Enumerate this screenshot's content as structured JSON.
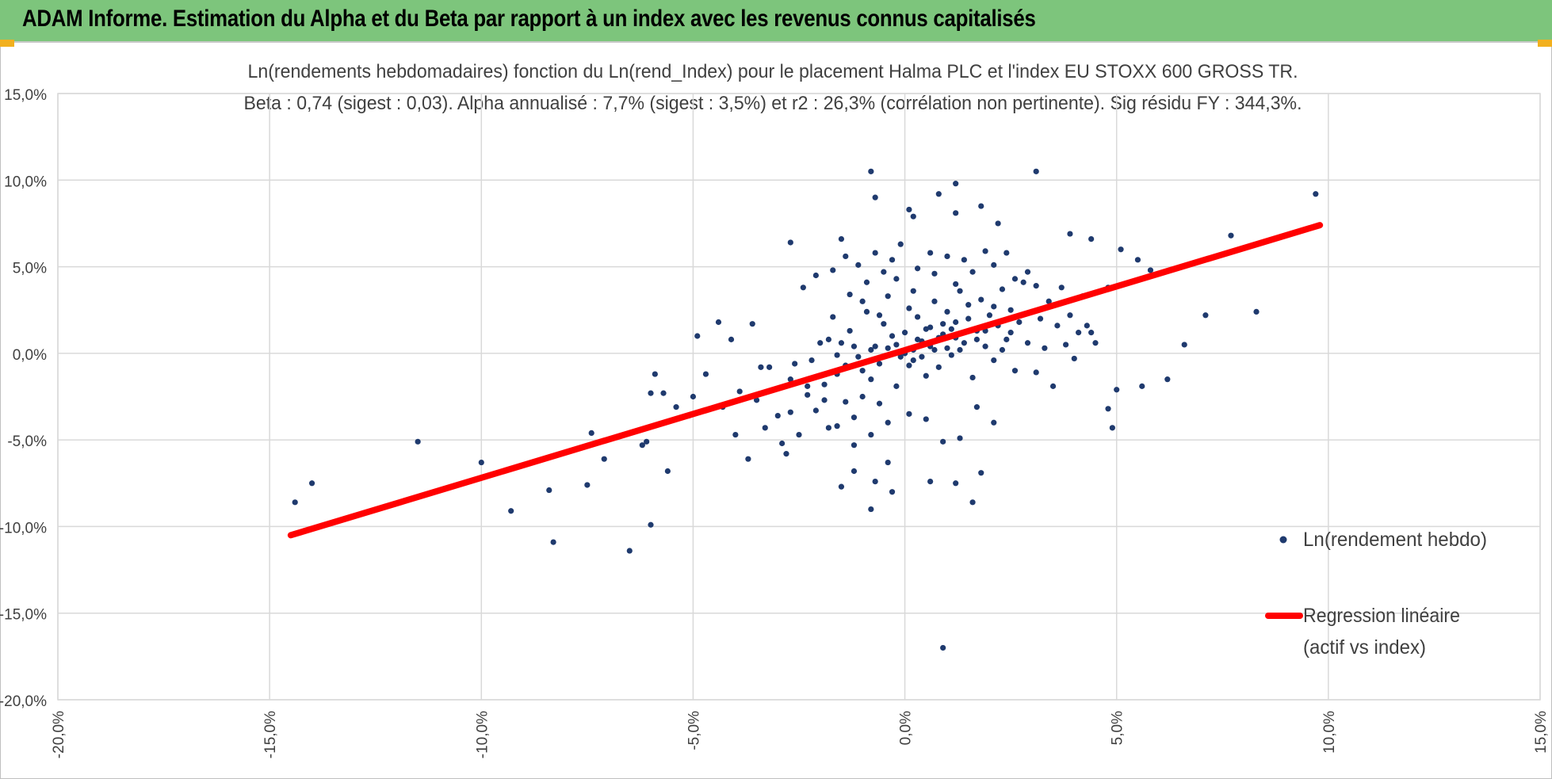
{
  "header": {
    "title": "ADAM Informe. Estimation du Alpha et du Beta par rapport à un index avec les revenus connus capitalisés"
  },
  "colors": {
    "header_bg": "#7dc57c",
    "accent_corner": "#f2b01e",
    "points": "#1f3a6e",
    "regression": "#ff0000",
    "grid": "#d9d9d9"
  },
  "chart_data": {
    "type": "scatter",
    "title": "Ln(rendements hebdomadaires) fonction du Ln(rend_Index) pour le placement Halma PLC et l'index EU STOXX 600 GROSS TR.",
    "subtitle": "Beta : 0,74 (sigest : 0,03). Alpha annualisé : 7,7% (sigest : 3,5%) et r2 : 26,3% (corrélation non pertinente). Sig résidu FY : 344,3%.",
    "xlabel": "",
    "ylabel": "",
    "xlim": [
      -0.2,
      0.15
    ],
    "ylim": [
      -0.2,
      0.15
    ],
    "x_ticks": [
      "-20,0%",
      "-15,0%",
      "-10,0%",
      "-5,0%",
      "0,0%",
      "5,0%",
      "10,0%",
      "15,0%"
    ],
    "y_ticks": [
      "15,0%",
      "10,0%",
      "5,0%",
      "0,0%",
      "-5,0%",
      "-10,0%",
      "-15,0%",
      "-20,0%"
    ],
    "grid": true,
    "legend_position": "right",
    "series": [
      {
        "name": "Ln(rendement hebdo)",
        "type": "scatter",
        "color": "#1f3a6e",
        "points": [
          [
            -0.144,
            -0.086
          ],
          [
            -0.14,
            -0.075
          ],
          [
            -0.115,
            -0.051
          ],
          [
            -0.1,
            -0.063
          ],
          [
            -0.093,
            -0.091
          ],
          [
            -0.084,
            -0.079
          ],
          [
            -0.083,
            -0.109
          ],
          [
            -0.075,
            -0.076
          ],
          [
            -0.074,
            -0.046
          ],
          [
            -0.071,
            -0.061
          ],
          [
            -0.065,
            -0.114
          ],
          [
            -0.062,
            -0.053
          ],
          [
            -0.061,
            -0.051
          ],
          [
            -0.06,
            -0.023
          ],
          [
            -0.06,
            -0.099
          ],
          [
            -0.059,
            -0.012
          ],
          [
            -0.057,
            -0.023
          ],
          [
            -0.056,
            -0.068
          ],
          [
            -0.054,
            -0.031
          ],
          [
            -0.051,
            -0.036
          ],
          [
            -0.05,
            -0.025
          ],
          [
            -0.049,
            0.01
          ],
          [
            -0.047,
            -0.012
          ],
          [
            -0.044,
            0.018
          ],
          [
            -0.043,
            -0.031
          ],
          [
            -0.041,
            0.008
          ],
          [
            -0.04,
            -0.047
          ],
          [
            -0.039,
            -0.022
          ],
          [
            -0.037,
            -0.061
          ],
          [
            -0.036,
            0.017
          ],
          [
            -0.035,
            -0.027
          ],
          [
            -0.034,
            -0.008
          ],
          [
            -0.033,
            -0.043
          ],
          [
            -0.032,
            -0.008
          ],
          [
            -0.031,
            -0.021
          ],
          [
            -0.03,
            -0.036
          ],
          [
            -0.029,
            -0.052
          ],
          [
            -0.028,
            -0.058
          ],
          [
            -0.027,
            -0.015
          ],
          [
            -0.026,
            -0.006
          ],
          [
            -0.025,
            -0.047
          ],
          [
            -0.024,
            0.038
          ],
          [
            -0.023,
            -0.024
          ],
          [
            -0.022,
            -0.004
          ],
          [
            -0.021,
            -0.033
          ],
          [
            -0.02,
            0.006
          ],
          [
            -0.019,
            -0.018
          ],
          [
            -0.018,
            -0.043
          ],
          [
            -0.017,
            0.021
          ],
          [
            -0.016,
            -0.012
          ],
          [
            -0.015,
            0.006
          ],
          [
            -0.014,
            -0.028
          ],
          [
            -0.013,
            0.013
          ],
          [
            -0.012,
            -0.037
          ],
          [
            -0.011,
            -0.002
          ],
          [
            -0.01,
            -0.025
          ],
          [
            -0.009,
            0.024
          ],
          [
            -0.008,
            -0.015
          ],
          [
            -0.007,
            0.004
          ],
          [
            -0.006,
            -0.029
          ],
          [
            -0.005,
            0.017
          ],
          [
            -0.004,
            0.033
          ],
          [
            -0.003,
            0.01
          ],
          [
            -0.002,
            -0.019
          ],
          [
            -0.001,
            -0.002
          ],
          [
            0.0,
            0.012
          ],
          [
            0.001,
            0.026
          ],
          [
            0.002,
            -0.004
          ],
          [
            0.003,
            0.021
          ],
          [
            0.004,
            0.007
          ],
          [
            0.005,
            -0.013
          ],
          [
            0.006,
            0.015
          ],
          [
            0.007,
            0.03
          ],
          [
            0.008,
            -0.008
          ],
          [
            0.009,
            0.011
          ],
          [
            0.01,
            0.024
          ],
          [
            0.011,
            -0.001
          ],
          [
            0.012,
            0.018
          ],
          [
            0.013,
            0.036
          ],
          [
            0.014,
            0.006
          ],
          [
            0.015,
            0.02
          ],
          [
            0.016,
            -0.014
          ],
          [
            0.017,
            0.013
          ],
          [
            0.018,
            0.031
          ],
          [
            0.019,
            0.004
          ],
          [
            0.02,
            0.022
          ],
          [
            0.021,
            -0.004
          ],
          [
            0.022,
            0.016
          ],
          [
            0.023,
            0.037
          ],
          [
            0.024,
            0.008
          ],
          [
            0.025,
            0.025
          ],
          [
            0.026,
            -0.01
          ],
          [
            0.027,
            0.018
          ],
          [
            0.028,
            0.041
          ],
          [
            0.029,
            0.006
          ],
          [
            0.03,
            0.024
          ],
          [
            0.031,
            -0.011
          ],
          [
            0.032,
            0.02
          ],
          [
            0.033,
            0.003
          ],
          [
            0.034,
            0.03
          ],
          [
            0.035,
            -0.019
          ],
          [
            0.036,
            0.016
          ],
          [
            0.037,
            0.038
          ],
          [
            0.038,
            0.005
          ],
          [
            0.039,
            0.022
          ],
          [
            0.04,
            -0.003
          ],
          [
            0.041,
            0.012
          ],
          [
            0.042,
            0.033
          ],
          [
            0.043,
            0.016
          ],
          [
            0.045,
            0.006
          ],
          [
            -0.01,
            0.03
          ],
          [
            -0.006,
            0.022
          ],
          [
            -0.002,
            0.043
          ],
          [
            0.003,
            0.049
          ],
          [
            0.007,
            0.046
          ],
          [
            0.012,
            0.04
          ],
          [
            0.016,
            0.047
          ],
          [
            0.021,
            0.051
          ],
          [
            0.026,
            0.043
          ],
          [
            0.031,
            0.039
          ],
          [
            -0.012,
            -0.053
          ],
          [
            -0.008,
            -0.047
          ],
          [
            -0.004,
            -0.04
          ],
          [
            0.001,
            -0.035
          ],
          [
            0.005,
            -0.038
          ],
          [
            0.009,
            -0.051
          ],
          [
            0.013,
            -0.049
          ],
          [
            0.017,
            -0.031
          ],
          [
            0.021,
            -0.04
          ],
          [
            -0.016,
            -0.042
          ],
          [
            -0.019,
            -0.027
          ],
          [
            -0.023,
            -0.019
          ],
          [
            -0.027,
            -0.034
          ],
          [
            -0.013,
            0.034
          ],
          [
            -0.009,
            0.041
          ],
          [
            -0.005,
            0.047
          ],
          [
            -0.003,
            0.054
          ],
          [
            0.002,
            0.036
          ],
          [
            0.006,
            0.058
          ],
          [
            0.01,
            0.056
          ],
          [
            0.014,
            0.054
          ],
          [
            0.019,
            0.059
          ],
          [
            0.024,
            0.058
          ],
          [
            0.029,
            0.047
          ],
          [
            -0.021,
            0.045
          ],
          [
            -0.017,
            0.048
          ],
          [
            -0.014,
            0.056
          ],
          [
            -0.011,
            0.051
          ],
          [
            -0.007,
            0.058
          ],
          [
            -0.001,
            0.063
          ],
          [
            -0.012,
            -0.068
          ],
          [
            -0.007,
            -0.074
          ],
          [
            -0.003,
            -0.08
          ],
          [
            -0.008,
            -0.09
          ],
          [
            0.006,
            -0.074
          ],
          [
            0.012,
            -0.075
          ],
          [
            0.016,
            -0.086
          ],
          [
            0.018,
            -0.069
          ],
          [
            -0.015,
            -0.077
          ],
          [
            -0.004,
            -0.063
          ],
          [
            -0.008,
            0.105
          ],
          [
            0.012,
            0.098
          ],
          [
            0.031,
            0.105
          ],
          [
            -0.007,
            0.09
          ],
          [
            0.008,
            0.092
          ],
          [
            0.012,
            0.081
          ],
          [
            0.018,
            0.085
          ],
          [
            0.002,
            0.079
          ],
          [
            0.001,
            0.083
          ],
          [
            -0.015,
            0.066
          ],
          [
            -0.027,
            0.064
          ],
          [
            0.022,
            0.075
          ],
          [
            0.039,
            0.069
          ],
          [
            0.044,
            0.066
          ],
          [
            0.051,
            0.06
          ],
          [
            0.055,
            0.054
          ],
          [
            0.058,
            0.048
          ],
          [
            0.066,
            0.005
          ],
          [
            0.071,
            0.022
          ],
          [
            0.077,
            0.068
          ],
          [
            0.083,
            0.024
          ],
          [
            0.097,
            0.092
          ],
          [
            0.048,
            0.038
          ],
          [
            0.05,
            -0.021
          ],
          [
            0.056,
            -0.019
          ],
          [
            0.062,
            -0.015
          ],
          [
            0.048,
            -0.032
          ],
          [
            0.049,
            -0.043
          ],
          [
            0.044,
            0.012
          ],
          [
            0.009,
            -0.17
          ],
          [
            0.0,
            0.0
          ],
          [
            0.002,
            0.002
          ],
          [
            -0.002,
            0.005
          ],
          [
            0.004,
            -0.002
          ],
          [
            0.006,
            0.004
          ],
          [
            -0.004,
            0.003
          ],
          [
            0.008,
            0.009
          ],
          [
            0.01,
            0.003
          ],
          [
            0.012,
            0.009
          ],
          [
            0.014,
            0.012
          ],
          [
            -0.006,
            -0.006
          ],
          [
            -0.008,
            0.002
          ],
          [
            0.001,
            -0.007
          ],
          [
            0.003,
            0.008
          ],
          [
            0.005,
            0.014
          ],
          [
            0.007,
            0.002
          ],
          [
            0.009,
            0.017
          ],
          [
            0.011,
            0.014
          ],
          [
            0.013,
            0.002
          ],
          [
            0.015,
            0.028
          ],
          [
            0.017,
            0.008
          ],
          [
            0.019,
            0.013
          ],
          [
            0.021,
            0.027
          ],
          [
            0.023,
            0.002
          ],
          [
            0.025,
            0.012
          ],
          [
            -0.01,
            -0.01
          ],
          [
            -0.012,
            0.004
          ],
          [
            -0.014,
            -0.007
          ],
          [
            -0.016,
            -0.001
          ],
          [
            -0.018,
            0.008
          ]
        ]
      },
      {
        "name": "Regression linéaire (actif vs index)",
        "type": "line",
        "color": "#ff0000",
        "points": [
          [
            -0.145,
            -0.105
          ],
          [
            0.098,
            0.074
          ]
        ]
      }
    ]
  }
}
